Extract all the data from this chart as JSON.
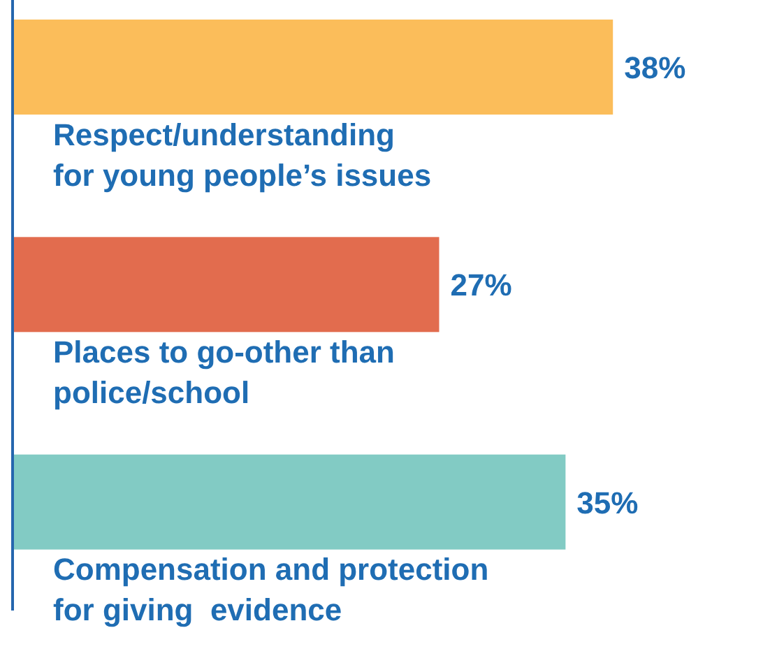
{
  "chart_data": {
    "type": "bar",
    "orientation": "horizontal",
    "categories": [
      "Respect/understanding\nfor young people’s issues",
      "Places to go-other than\npolice/school",
      "Compensation and protection\nfor giving  evidence"
    ],
    "values": [
      38,
      27,
      35
    ],
    "colors": [
      "#fbbd5a",
      "#e26c4e",
      "#82cbc4"
    ],
    "value_labels": [
      "38%",
      "27%",
      "35%"
    ],
    "legend": false,
    "grid": false
  }
}
